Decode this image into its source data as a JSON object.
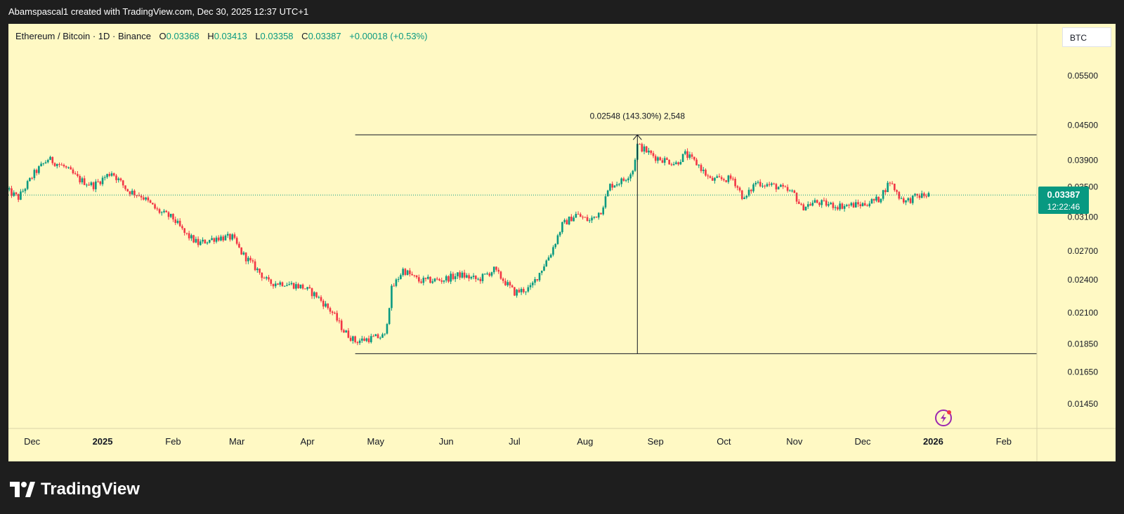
{
  "header": {
    "attribution": "Abamspascal1 created with TradingView.com, Dec 30, 2025 12:37 UTC+1"
  },
  "legend": {
    "symbol": "Ethereum / Bitcoin · 1D · Binance",
    "open_label": "O",
    "open": "0.03368",
    "high_label": "H",
    "high": "0.03413",
    "low_label": "L",
    "low": "0.03358",
    "close_label": "C",
    "close": "0.03387",
    "change": "+0.00018 (+0.53%)"
  },
  "currency_button": "BTC",
  "price_badge": {
    "price": "0.03387",
    "countdown": "12:22:46"
  },
  "measure_label": "0.02548 (143.30%) 2,548",
  "footer": {
    "brand": "TradingView"
  },
  "colors": {
    "background": "#fff9c4",
    "up": "#089981",
    "down": "#f23645",
    "frame": "#1e1e1e"
  },
  "icons": {
    "lightning": "lightning-icon",
    "logo": "tradingview-logo-icon"
  },
  "chart_data": {
    "type": "candlestick",
    "price_scale": "log",
    "y_ticks": [
      "0.05500",
      "0.04500",
      "0.03900",
      "0.03500",
      "0.03100",
      "0.02700",
      "0.02400",
      "0.02100",
      "0.01850",
      "0.01650",
      "0.01450"
    ],
    "x_ticks": [
      "Dec",
      "2025",
      "Feb",
      "Mar",
      "Apr",
      "May",
      "Jun",
      "Jul",
      "Aug",
      "Sep",
      "Oct",
      "Nov",
      "Dec",
      "2026",
      "Feb"
    ],
    "x_range": [
      "2024-11-20",
      "2026-02-10"
    ],
    "last_price": 0.03387,
    "measure": {
      "from_date": "2025-04-22",
      "low": 0.01778,
      "high": 0.04326,
      "change": 0.02548,
      "change_pct": 143.3
    },
    "close_path": [
      [
        "2024-11-20",
        0.0345
      ],
      [
        "2024-11-25",
        0.0335
      ],
      [
        "2024-12-02",
        0.037
      ],
      [
        "2024-12-08",
        0.0392
      ],
      [
        "2024-12-15",
        0.038
      ],
      [
        "2024-12-22",
        0.036
      ],
      [
        "2024-12-28",
        0.0352
      ],
      [
        "2025-01-05",
        0.0372
      ],
      [
        "2025-01-12",
        0.0345
      ],
      [
        "2025-01-18",
        0.0338
      ],
      [
        "2025-01-25",
        0.0318
      ],
      [
        "2025-02-01",
        0.0308
      ],
      [
        "2025-02-06",
        0.029
      ],
      [
        "2025-02-12",
        0.0278
      ],
      [
        "2025-02-20",
        0.0285
      ],
      [
        "2025-02-27",
        0.0285
      ],
      [
        "2025-03-03",
        0.0268
      ],
      [
        "2025-03-10",
        0.025
      ],
      [
        "2025-03-15",
        0.0237
      ],
      [
        "2025-03-22",
        0.0237
      ],
      [
        "2025-03-30",
        0.0233
      ],
      [
        "2025-04-05",
        0.0225
      ],
      [
        "2025-04-12",
        0.021
      ],
      [
        "2025-04-17",
        0.0195
      ],
      [
        "2025-04-22",
        0.0187
      ],
      [
        "2025-04-28",
        0.0189
      ],
      [
        "2025-05-05",
        0.0191
      ],
      [
        "2025-05-08",
        0.0231
      ],
      [
        "2025-05-13",
        0.025
      ],
      [
        "2025-05-20",
        0.0239
      ],
      [
        "2025-05-30",
        0.024
      ],
      [
        "2025-06-07",
        0.0245
      ],
      [
        "2025-06-15",
        0.024
      ],
      [
        "2025-06-22",
        0.025
      ],
      [
        "2025-06-26",
        0.024
      ],
      [
        "2025-07-01",
        0.0228
      ],
      [
        "2025-07-08",
        0.0232
      ],
      [
        "2025-07-12",
        0.0247
      ],
      [
        "2025-07-17",
        0.0268
      ],
      [
        "2025-07-22",
        0.03
      ],
      [
        "2025-07-28",
        0.0313
      ],
      [
        "2025-08-03",
        0.0305
      ],
      [
        "2025-08-08",
        0.0318
      ],
      [
        "2025-08-12",
        0.0352
      ],
      [
        "2025-08-18",
        0.036
      ],
      [
        "2025-08-22",
        0.0375
      ],
      [
        "2025-08-24",
        0.0415
      ],
      [
        "2025-09-01",
        0.0395
      ],
      [
        "2025-09-10",
        0.0385
      ],
      [
        "2025-09-14",
        0.04
      ],
      [
        "2025-09-20",
        0.0382
      ],
      [
        "2025-09-25",
        0.036
      ],
      [
        "2025-10-05",
        0.0362
      ],
      [
        "2025-10-10",
        0.0332
      ],
      [
        "2025-10-15",
        0.0357
      ],
      [
        "2025-10-25",
        0.035
      ],
      [
        "2025-11-01",
        0.034
      ],
      [
        "2025-11-04",
        0.0322
      ],
      [
        "2025-11-10",
        0.0329
      ],
      [
        "2025-11-20",
        0.0324
      ],
      [
        "2025-12-01",
        0.0326
      ],
      [
        "2025-12-08",
        0.0333
      ],
      [
        "2025-12-13",
        0.0358
      ],
      [
        "2025-12-17",
        0.0337
      ],
      [
        "2025-12-20",
        0.033
      ],
      [
        "2025-12-25",
        0.0337
      ],
      [
        "2025-12-30",
        0.0339
      ]
    ]
  }
}
